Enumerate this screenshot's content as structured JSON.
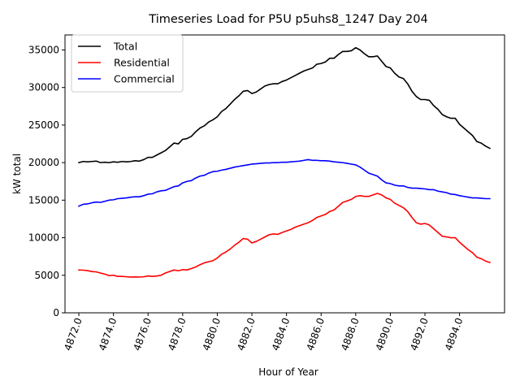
{
  "chart_data": {
    "type": "line",
    "title": "Timeseries Load for P5U p5uhs8_1247  Day 204",
    "xlabel": "Hour of Year",
    "ylabel": "kW total",
    "xlim": [
      4871.2,
      4896.6
    ],
    "ylim": [
      0,
      37000
    ],
    "x_ticks": [
      4872.0,
      4874.0,
      4876.0,
      4878.0,
      4880.0,
      4882.0,
      4884.0,
      4886.0,
      4888.0,
      4890.0,
      4892.0,
      4894.0
    ],
    "x_tick_labels": [
      "4872.0",
      "4874.0",
      "4876.0",
      "4878.0",
      "4880.0",
      "4882.0",
      "4884.0",
      "4886.0",
      "4888.0",
      "4890.0",
      "4892.0",
      "4894.0"
    ],
    "y_ticks": [
      0,
      5000,
      10000,
      15000,
      20000,
      25000,
      30000,
      35000
    ],
    "y_tick_labels": [
      "0",
      "5000",
      "10000",
      "15000",
      "20000",
      "25000",
      "30000",
      "35000"
    ],
    "legend_position": "top-left",
    "grid": false,
    "x": [
      4872.0,
      4872.25,
      4872.5,
      4872.75,
      4873.0,
      4873.25,
      4873.5,
      4873.75,
      4874.0,
      4874.25,
      4874.5,
      4874.75,
      4875.0,
      4875.25,
      4875.5,
      4875.75,
      4876.0,
      4876.25,
      4876.5,
      4876.75,
      4877.0,
      4877.25,
      4877.5,
      4877.75,
      4878.0,
      4878.25,
      4878.5,
      4878.75,
      4879.0,
      4879.25,
      4879.5,
      4879.75,
      4880.0,
      4880.25,
      4880.5,
      4880.75,
      4881.0,
      4881.25,
      4881.5,
      4881.75,
      4882.0,
      4882.25,
      4882.5,
      4882.75,
      4883.0,
      4883.25,
      4883.5,
      4883.75,
      4884.0,
      4884.25,
      4884.5,
      4884.75,
      4885.0,
      4885.25,
      4885.5,
      4885.75,
      4886.0,
      4886.25,
      4886.5,
      4886.75,
      4887.0,
      4887.25,
      4887.5,
      4887.75,
      4888.0,
      4888.25,
      4888.5,
      4888.75,
      4889.0,
      4889.25,
      4889.5,
      4889.75,
      4890.0,
      4890.25,
      4890.5,
      4890.75,
      4891.0,
      4891.25,
      4891.5,
      4891.75,
      4892.0,
      4892.25,
      4892.5,
      4892.75,
      4893.0,
      4893.25,
      4893.5,
      4893.75,
      4894.0,
      4894.25,
      4894.5,
      4894.75,
      4895.0,
      4895.25,
      4895.5,
      4895.75
    ],
    "series": [
      {
        "name": "Total",
        "color": "#000000",
        "values": [
          20000,
          20150,
          20100,
          20150,
          20200,
          20000,
          20050,
          20000,
          20100,
          20050,
          20150,
          20100,
          20150,
          20250,
          20200,
          20400,
          20700,
          20700,
          21000,
          21300,
          21600,
          22100,
          22600,
          22500,
          23100,
          23200,
          23500,
          24100,
          24600,
          24900,
          25400,
          25700,
          26100,
          26800,
          27200,
          27800,
          28400,
          28900,
          29500,
          29600,
          29200,
          29400,
          29800,
          30200,
          30400,
          30500,
          30500,
          30800,
          31000,
          31300,
          31600,
          31900,
          32200,
          32400,
          32600,
          33100,
          33200,
          33400,
          33900,
          33900,
          34400,
          34800,
          34800,
          34900,
          35300,
          35000,
          34500,
          34100,
          34100,
          34200,
          33500,
          32800,
          32600,
          31900,
          31400,
          31200,
          30500,
          29500,
          28800,
          28400,
          28400,
          28300,
          27600,
          27100,
          26400,
          26100,
          25900,
          25900,
          25100,
          24600,
          24100,
          23600,
          22800,
          22600,
          22200,
          21900
        ]
      },
      {
        "name": "Residential",
        "color": "#ff0000",
        "values": [
          5700,
          5680,
          5620,
          5500,
          5450,
          5300,
          5150,
          4950,
          5000,
          4850,
          4850,
          4800,
          4750,
          4780,
          4760,
          4800,
          4900,
          4850,
          4900,
          5000,
          5300,
          5500,
          5700,
          5600,
          5750,
          5700,
          5900,
          6100,
          6400,
          6650,
          6800,
          6950,
          7300,
          7800,
          8100,
          8500,
          9000,
          9400,
          9900,
          9800,
          9300,
          9500,
          9800,
          10100,
          10400,
          10500,
          10450,
          10700,
          10900,
          11100,
          11400,
          11600,
          11800,
          12000,
          12300,
          12700,
          12900,
          13100,
          13500,
          13700,
          14200,
          14700,
          14900,
          15100,
          15500,
          15600,
          15500,
          15500,
          15700,
          15900,
          15700,
          15300,
          15100,
          14600,
          14300,
          14000,
          13500,
          12700,
          12000,
          11800,
          11900,
          11700,
          11200,
          10700,
          10200,
          10100,
          10000,
          10000,
          9400,
          8900,
          8400,
          8000,
          7400,
          7200,
          6900,
          6700
        ]
      },
      {
        "name": "Commercial",
        "color": "#0000ff",
        "values": [
          14200,
          14450,
          14500,
          14650,
          14750,
          14700,
          14850,
          15000,
          15050,
          15200,
          15250,
          15300,
          15400,
          15450,
          15450,
          15600,
          15800,
          15850,
          16100,
          16250,
          16300,
          16550,
          16800,
          16900,
          17300,
          17500,
          17600,
          17950,
          18200,
          18300,
          18600,
          18800,
          18850,
          19000,
          19100,
          19250,
          19400,
          19500,
          19600,
          19700,
          19800,
          19850,
          19900,
          19950,
          19950,
          20000,
          20000,
          20050,
          20050,
          20100,
          20150,
          20200,
          20300,
          20400,
          20300,
          20300,
          20250,
          20250,
          20200,
          20100,
          20050,
          20000,
          19900,
          19800,
          19700,
          19400,
          19000,
          18600,
          18400,
          18200,
          17700,
          17300,
          17200,
          17000,
          16900,
          16900,
          16700,
          16600,
          16600,
          16550,
          16500,
          16400,
          16400,
          16200,
          16100,
          16000,
          15800,
          15750,
          15600,
          15500,
          15400,
          15300,
          15300,
          15250,
          15200,
          15200
        ]
      }
    ]
  }
}
